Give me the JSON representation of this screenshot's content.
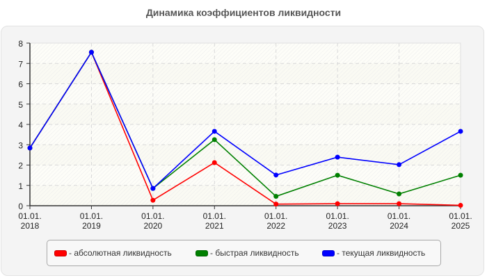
{
  "title": "Динамика коэффициентов ликвидности",
  "chart_data": {
    "type": "line",
    "title": "Динамика коэффициентов ликвидности",
    "xlabel": "",
    "ylabel": "",
    "ylim": [
      0,
      8
    ],
    "yticks": [
      0,
      1,
      2,
      3,
      4,
      5,
      6,
      7,
      8
    ],
    "grid": true,
    "legend_position": "bottom",
    "categories": [
      "01.01.\n2018",
      "01.01.\n2019",
      "01.01.\n2020",
      "01.01.\n2021",
      "01.01.\n2022",
      "01.01.\n2023",
      "01.01.\n2024",
      "01.01.\n2025"
    ],
    "series": [
      {
        "name": "абсолютная ликвидность",
        "color": "#ff0000",
        "values": [
          2.84,
          7.55,
          0.27,
          2.12,
          0.08,
          0.1,
          0.1,
          0.02
        ]
      },
      {
        "name": "быстрая ликвидность",
        "color": "#008000",
        "values": [
          2.84,
          7.55,
          0.85,
          3.25,
          0.46,
          1.5,
          0.58,
          1.5
        ]
      },
      {
        "name": "текущая ликвидность",
        "color": "#0000ff",
        "values": [
          2.84,
          7.55,
          0.85,
          3.66,
          1.51,
          2.39,
          2.02,
          3.66
        ]
      }
    ]
  },
  "x_labels": [
    {
      "line1": "01.01.",
      "line2": "2018"
    },
    {
      "line1": "01.01.",
      "line2": "2019"
    },
    {
      "line1": "01.01.",
      "line2": "2020"
    },
    {
      "line1": "01.01.",
      "line2": "2021"
    },
    {
      "line1": "01.01.",
      "line2": "2022"
    },
    {
      "line1": "01.01.",
      "line2": "2023"
    },
    {
      "line1": "01.01.",
      "line2": "2024"
    },
    {
      "line1": "01.01.",
      "line2": "2025"
    }
  ],
  "legend": [
    {
      "label": "- абсолютная ликвидность",
      "color": "#ff0000"
    },
    {
      "label": "- быстрая ликвидность",
      "color": "#008000"
    },
    {
      "label": "- текущая ликвидность",
      "color": "#0000ff"
    }
  ]
}
